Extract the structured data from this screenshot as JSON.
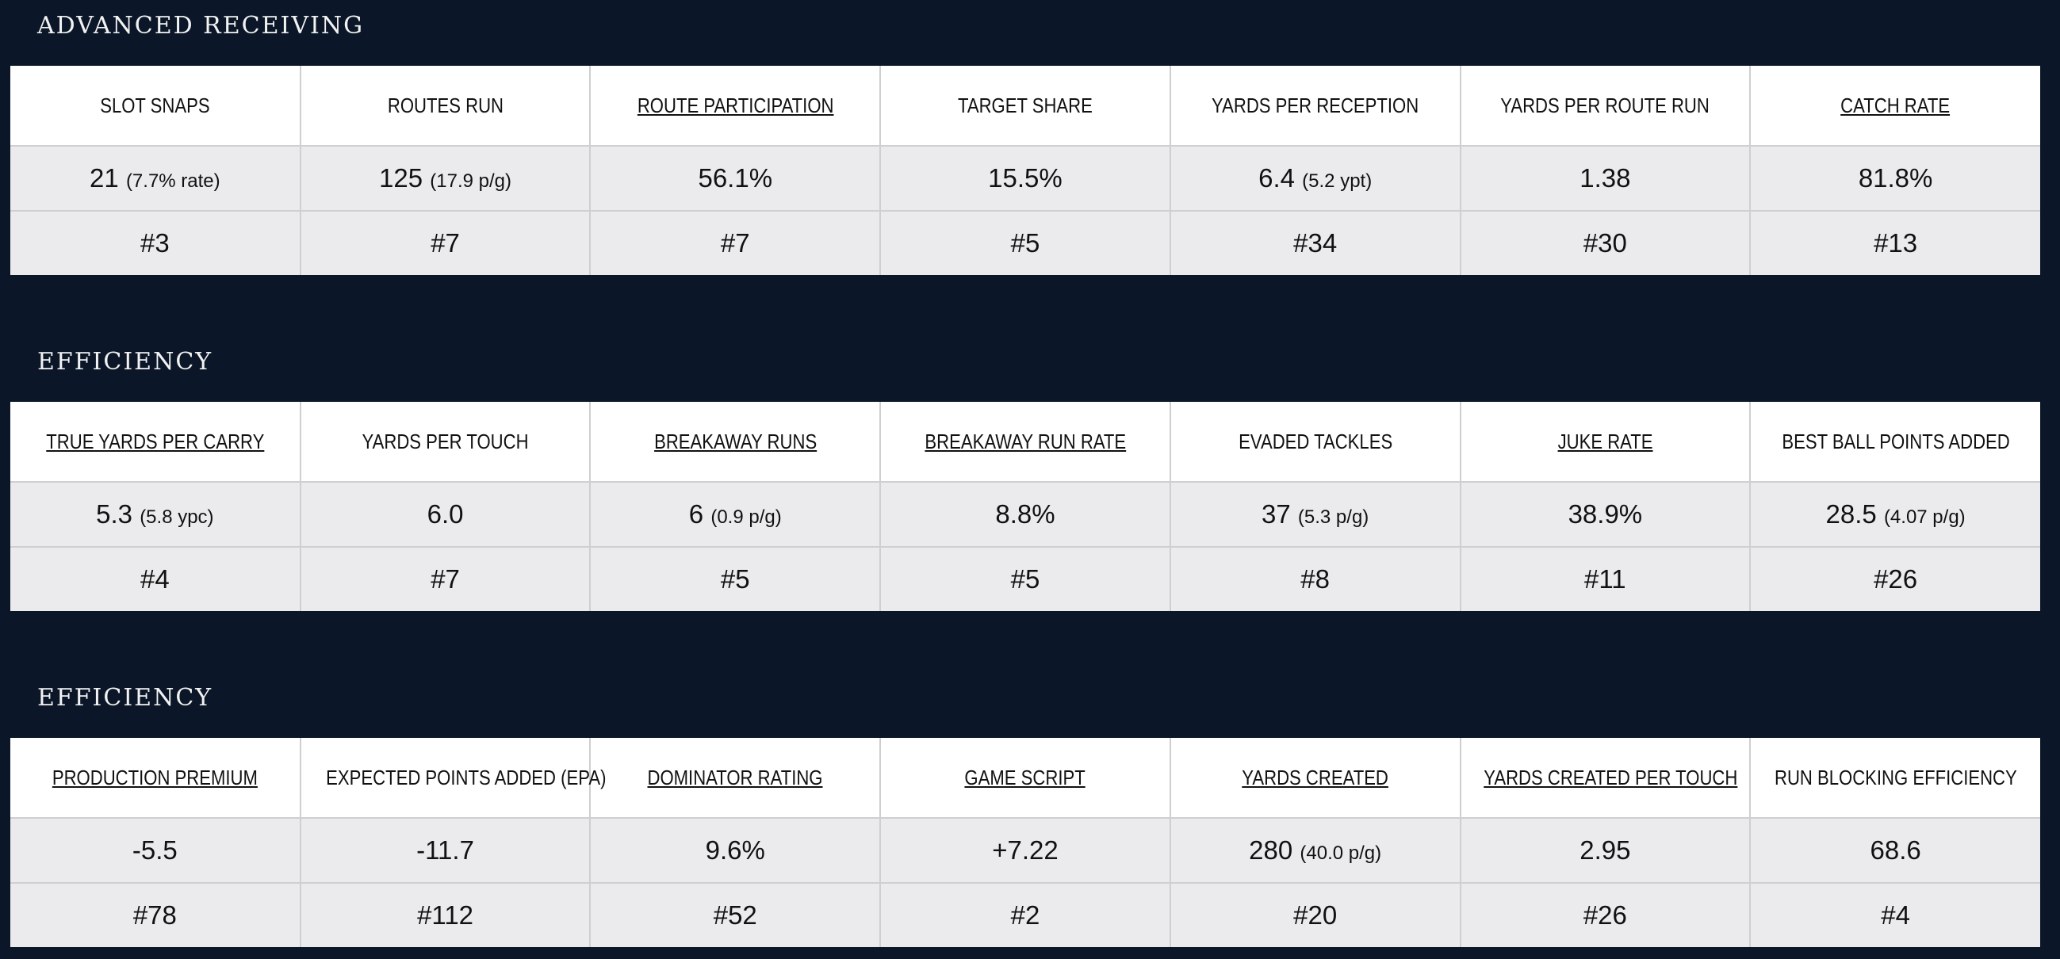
{
  "sections": [
    {
      "title": "ADVANCED RECEIVING",
      "columns": [
        {
          "header": "SLOT SNAPS",
          "link": false,
          "value": "21",
          "sub": "(7.7% rate)",
          "rank": "#3"
        },
        {
          "header": "ROUTES RUN",
          "link": false,
          "value": "125",
          "sub": "(17.9 p/g)",
          "rank": "#7"
        },
        {
          "header": "ROUTE PARTICIPATION",
          "link": true,
          "value": "56.1%",
          "rank": "#7"
        },
        {
          "header": "TARGET SHARE",
          "link": false,
          "value": "15.5%",
          "rank": "#5"
        },
        {
          "header": "YARDS PER RECEPTION",
          "link": false,
          "value": "6.4",
          "sub": "(5.2 ypt)",
          "rank": "#34"
        },
        {
          "header": "YARDS PER ROUTE RUN",
          "link": false,
          "value": "1.38",
          "rank": "#30"
        },
        {
          "header": "CATCH RATE",
          "link": true,
          "value": "81.8%",
          "rank": "#13"
        }
      ]
    },
    {
      "title": "EFFICIENCY",
      "columns": [
        {
          "header": "TRUE YARDS PER CARRY",
          "link": true,
          "value": "5.3",
          "sub": "(5.8 ypc)",
          "rank": "#4"
        },
        {
          "header": "YARDS PER TOUCH",
          "link": false,
          "value": "6.0",
          "rank": "#7"
        },
        {
          "header": "BREAKAWAY RUNS",
          "link": true,
          "value": "6",
          "sub": "(0.9 p/g)",
          "rank": "#5"
        },
        {
          "header": "BREAKAWAY RUN RATE",
          "link": true,
          "value": "8.8%",
          "rank": "#5"
        },
        {
          "header": "EVADED TACKLES",
          "link": false,
          "value": "37",
          "sub": "(5.3 p/g)",
          "rank": "#8"
        },
        {
          "header": "JUKE RATE",
          "link": true,
          "value": "38.9%",
          "rank": "#11"
        },
        {
          "header": "BEST BALL POINTS ADDED",
          "link": false,
          "value": "28.5",
          "sub": "(4.07 p/g)",
          "rank": "#26"
        }
      ]
    },
    {
      "title": "EFFICIENCY",
      "columns": [
        {
          "header": "PRODUCTION PREMIUM",
          "link": true,
          "value": "-5.5",
          "rank": "#78"
        },
        {
          "header": "EXPECTED POINTS ADDED (EPA)",
          "link": false,
          "value": "-11.7",
          "rank": "#112"
        },
        {
          "header": "DOMINATOR RATING",
          "link": true,
          "value": "9.6%",
          "rank": "#52"
        },
        {
          "header": "GAME SCRIPT",
          "link": true,
          "value": "+7.22",
          "rank": "#2"
        },
        {
          "header": "YARDS CREATED",
          "link": true,
          "value": "280",
          "sub": "(40.0 p/g)",
          "rank": "#20"
        },
        {
          "header": "YARDS CREATED PER TOUCH",
          "link": true,
          "value": "2.95",
          "rank": "#26"
        },
        {
          "header": "RUN BLOCKING EFFICIENCY",
          "link": false,
          "value": "68.6",
          "rank": "#4"
        }
      ]
    }
  ]
}
